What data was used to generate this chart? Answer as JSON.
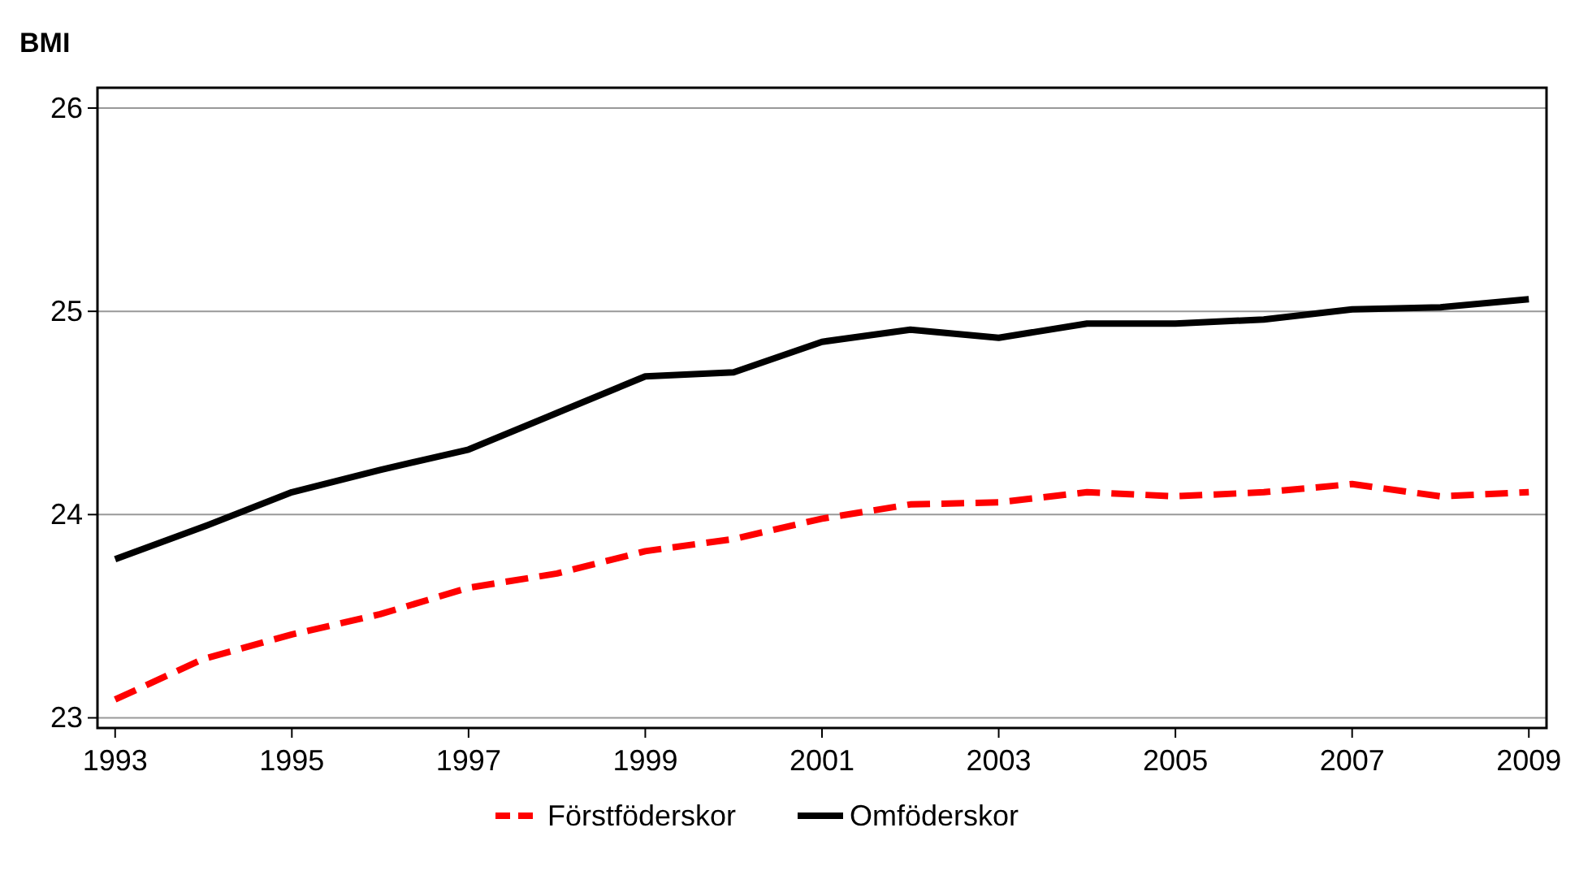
{
  "chart_data": {
    "type": "line",
    "ylabel": "BMI",
    "x": [
      1993,
      1994,
      1995,
      1996,
      1997,
      1998,
      1999,
      2000,
      2001,
      2002,
      2003,
      2004,
      2005,
      2006,
      2007,
      2008,
      2009
    ],
    "series": [
      {
        "name": "Förstföderskor",
        "color": "#ff0000",
        "line_style": "dashed",
        "values": [
          23.09,
          23.29,
          23.41,
          23.51,
          23.64,
          23.71,
          23.82,
          23.88,
          23.98,
          24.05,
          24.06,
          24.11,
          24.09,
          24.11,
          24.15,
          24.09,
          24.11
        ]
      },
      {
        "name": "Omföderskor",
        "color": "#000000",
        "line_style": "solid",
        "values": [
          23.78,
          23.94,
          24.11,
          24.22,
          24.32,
          24.5,
          24.68,
          24.7,
          24.85,
          24.91,
          24.87,
          24.94,
          24.94,
          24.96,
          25.01,
          25.02,
          25.06
        ]
      }
    ],
    "xlim": [
      1992.8,
      2009.2
    ],
    "xticks": [
      1993,
      1995,
      1997,
      1999,
      2001,
      2003,
      2005,
      2007,
      2009
    ],
    "ylim": [
      22.95,
      26.1
    ],
    "yticks": [
      23,
      24,
      25,
      26
    ],
    "grid": "y",
    "legend": "bottom",
    "marker": "none"
  }
}
